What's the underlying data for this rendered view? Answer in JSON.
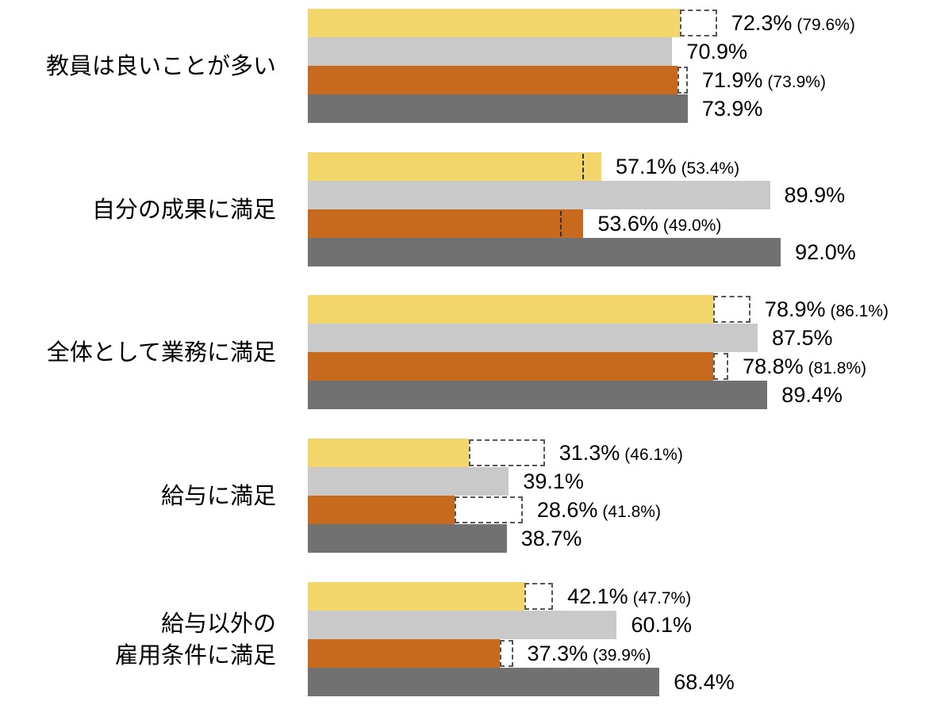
{
  "chart_data": {
    "type": "bar",
    "orientation": "horizontal",
    "categories": [
      "教員は良いことが多い",
      "自分の成果に満足",
      "全体として業務に満足",
      "給与に満足",
      "給与以外の\n雇用条件に満足"
    ],
    "series": [
      {
        "color": "#F2D66B",
        "values": [
          72.3,
          57.1,
          78.9,
          31.3,
          42.1
        ],
        "reference_values": [
          79.6,
          53.4,
          86.1,
          46.1,
          47.7
        ]
      },
      {
        "color": "#C9C9C9",
        "values": [
          70.9,
          89.9,
          87.5,
          39.1,
          60.1
        ]
      },
      {
        "color": "#C86A1E",
        "values": [
          71.9,
          53.6,
          78.8,
          28.6,
          37.3
        ],
        "reference_values": [
          73.9,
          49.0,
          81.8,
          41.8,
          39.9
        ]
      },
      {
        "color": "#717171",
        "values": [
          73.9,
          92.0,
          89.4,
          38.7,
          68.4
        ]
      }
    ],
    "value_format": "{v}%",
    "reference_format": "({v}%)",
    "xlim": [
      0,
      100
    ],
    "grid": false,
    "legend": "none"
  }
}
